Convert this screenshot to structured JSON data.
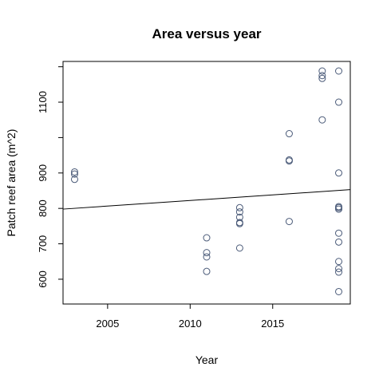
{
  "chart_data": {
    "type": "scatter",
    "title": "Area versus year",
    "xlabel": "Year",
    "ylabel": "Patch reef area (m^2)",
    "xlim": [
      2002.3,
      2019.7
    ],
    "ylim": [
      530,
      1215
    ],
    "x_ticks": [
      2005,
      2010,
      2015
    ],
    "x_tick_labels": [
      "2005",
      "2010",
      "2015"
    ],
    "y_ticks": [
      600,
      700,
      800,
      900,
      1100
    ],
    "y_tick_labels": [
      "600",
      "700",
      "800",
      "900",
      "1100"
    ],
    "y_extra_ticks": [
      1000,
      1200
    ],
    "grid": false,
    "legend": "none",
    "point_color": "#4a5a78",
    "line_color": "#000000",
    "points": [
      {
        "x": 2003,
        "y": 903
      },
      {
        "x": 2003,
        "y": 897
      },
      {
        "x": 2003,
        "y": 882
      },
      {
        "x": 2011,
        "y": 717
      },
      {
        "x": 2011,
        "y": 675
      },
      {
        "x": 2011,
        "y": 663
      },
      {
        "x": 2011,
        "y": 622
      },
      {
        "x": 2013,
        "y": 802
      },
      {
        "x": 2013,
        "y": 790
      },
      {
        "x": 2013,
        "y": 775
      },
      {
        "x": 2013,
        "y": 760
      },
      {
        "x": 2013,
        "y": 757
      },
      {
        "x": 2013,
        "y": 688
      },
      {
        "x": 2016,
        "y": 1011
      },
      {
        "x": 2016,
        "y": 937
      },
      {
        "x": 2016,
        "y": 934
      },
      {
        "x": 2016,
        "y": 763
      },
      {
        "x": 2018,
        "y": 1230
      },
      {
        "x": 2018,
        "y": 1175
      },
      {
        "x": 2018,
        "y": 1167
      },
      {
        "x": 2018,
        "y": 1050
      },
      {
        "x": 2019,
        "y": 1200
      },
      {
        "x": 2019,
        "y": 1100
      },
      {
        "x": 2019,
        "y": 900
      },
      {
        "x": 2019,
        "y": 805
      },
      {
        "x": 2019,
        "y": 802
      },
      {
        "x": 2019,
        "y": 798
      },
      {
        "x": 2019,
        "y": 730
      },
      {
        "x": 2019,
        "y": 705
      },
      {
        "x": 2019,
        "y": 650
      },
      {
        "x": 2019,
        "y": 630
      },
      {
        "x": 2019,
        "y": 620
      },
      {
        "x": 2019,
        "y": 565
      }
    ],
    "trend_line": {
      "x": [
        2002.3,
        2019.7
      ],
      "y": [
        798,
        853
      ]
    }
  }
}
